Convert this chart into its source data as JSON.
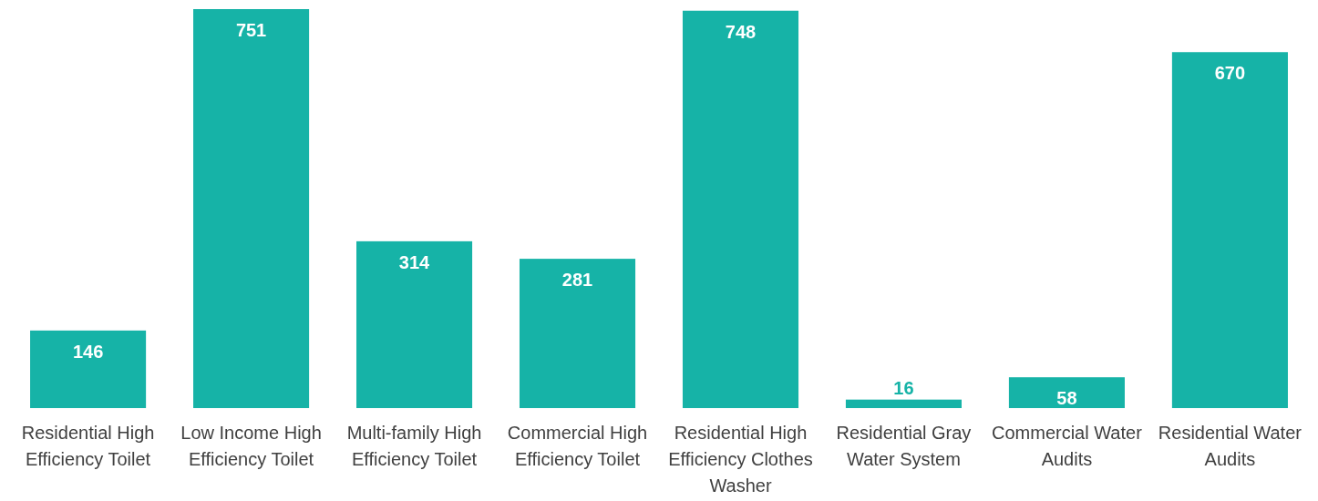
{
  "chart_data": {
    "type": "bar",
    "categories": [
      "Residential High Efficiency Toilet",
      "Low Income High Efficiency Toilet",
      "Multi-family High Efficiency Toilet",
      "Commercial High Efficiency Toilet",
      "Residential High Efficiency Clothes Washer",
      "Residential Gray Water System",
      "Commercial Water Audits",
      "Residential Water Audits"
    ],
    "values": [
      146,
      751,
      314,
      281,
      748,
      16,
      58,
      670
    ],
    "color": "#16b3a7",
    "data_labels": true
  }
}
